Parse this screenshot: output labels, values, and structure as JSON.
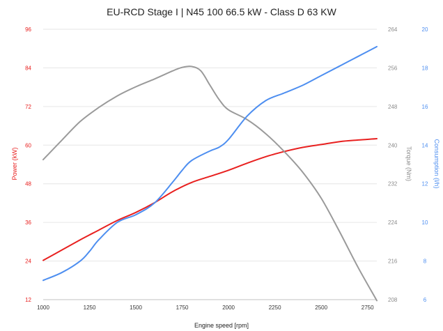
{
  "chart_data": {
    "type": "line",
    "title": "EU-RCD Stage I | N45 100 66.5 kW - Class D 63 KW",
    "xlabel": "Engine speed [rpm]",
    "xlim": [
      1000,
      2800
    ],
    "x_ticks": [
      "1000",
      "1250",
      "1500",
      "1750",
      "2000",
      "2250",
      "2500",
      "2750"
    ],
    "axes": [
      {
        "id": "power",
        "position": "left",
        "label": "Power (kW)",
        "color": "#e8201f",
        "ylim": [
          12,
          96
        ],
        "ticks": [
          "12",
          "24",
          "36",
          "48",
          "60",
          "72",
          "84",
          "96"
        ]
      },
      {
        "id": "torque",
        "position": "right",
        "label": "Torque (Nm)",
        "color": "#8c8c8c",
        "ylim": [
          208,
          264
        ],
        "ticks": [
          "208",
          "216",
          "224",
          "232",
          "240",
          "248",
          "256",
          "264"
        ]
      },
      {
        "id": "consumption",
        "position": "right-outer",
        "label": "Consumption (l/h)",
        "color": "#4d8ef0",
        "ylim": [
          6,
          20
        ],
        "ticks": [
          "6",
          "8",
          "10",
          "12",
          "14",
          "16",
          "18",
          "20"
        ]
      }
    ],
    "grid": true,
    "series": [
      {
        "name": "Power (kW)",
        "axis": "power",
        "color": "#e8201f",
        "x": [
          1000,
          1100,
          1200,
          1300,
          1400,
          1500,
          1600,
          1700,
          1800,
          1900,
          2000,
          2100,
          2200,
          2300,
          2400,
          2500,
          2600,
          2700,
          2800
        ],
        "y": [
          24.2,
          27.4,
          30.6,
          33.6,
          36.6,
          39.1,
          42.1,
          45.6,
          48.4,
          50.3,
          52.2,
          54.4,
          56.4,
          58.0,
          59.3,
          60.2,
          61.1,
          61.6,
          62.0
        ]
      },
      {
        "name": "Torque (Nm)",
        "axis": "torque",
        "color": "#9a9a9a",
        "x": [
          1000,
          1100,
          1200,
          1300,
          1400,
          1500,
          1600,
          1700,
          1750,
          1800,
          1850,
          1900,
          1950,
          2000,
          2100,
          2200,
          2300,
          2400,
          2500,
          2600,
          2700,
          2800
        ],
        "y": [
          237.0,
          241.0,
          244.9,
          247.8,
          250.2,
          252.1,
          253.7,
          255.4,
          256.1,
          256.3,
          255.4,
          252.4,
          249.4,
          247.3,
          245.3,
          242.4,
          238.7,
          234.4,
          229.0,
          222.0,
          214.6,
          207.8
        ]
      },
      {
        "name": "Consumption (l/h)",
        "axis": "consumption",
        "color": "#4d8ef0",
        "x": [
          1000,
          1100,
          1200,
          1250,
          1300,
          1400,
          1500,
          1600,
          1700,
          1750,
          1800,
          1900,
          1950,
          2000,
          2100,
          2200,
          2300,
          2400,
          2500,
          2600,
          2700,
          2800
        ],
        "y": [
          7.0,
          7.4,
          8.0,
          8.5,
          9.1,
          10.0,
          10.4,
          11.0,
          12.1,
          12.7,
          13.2,
          13.7,
          13.9,
          14.3,
          15.5,
          16.3,
          16.7,
          17.1,
          17.6,
          18.1,
          18.6,
          19.1
        ]
      }
    ]
  }
}
